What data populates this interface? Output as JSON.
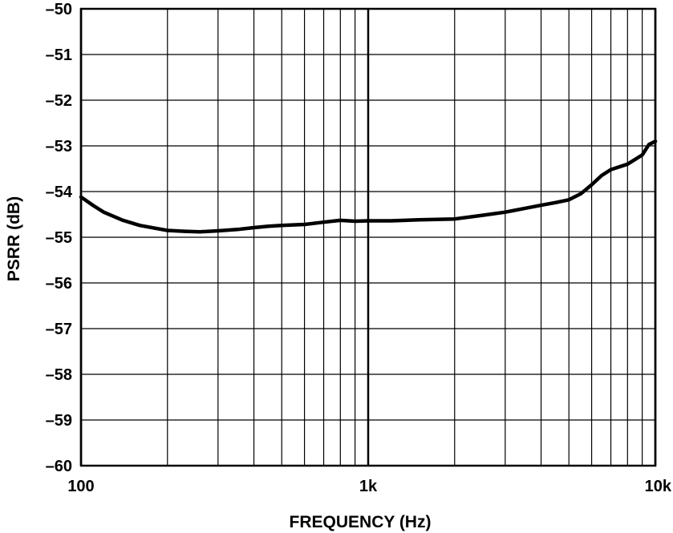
{
  "chart_data": {
    "type": "line",
    "xscale": "log",
    "xlim": [
      100,
      10000
    ],
    "ylim": [
      -60,
      -50
    ],
    "xlabel": "FREQUENCY (Hz)",
    "ylabel": "PSRR (dB)",
    "x_ticks": [
      {
        "value": 100,
        "label": "100"
      },
      {
        "value": 1000,
        "label": "1k"
      },
      {
        "value": 10000,
        "label": "10k"
      }
    ],
    "y_ticks": [
      {
        "value": -50,
        "label": "–50"
      },
      {
        "value": -51,
        "label": "–51"
      },
      {
        "value": -52,
        "label": "–52"
      },
      {
        "value": -53,
        "label": "–53"
      },
      {
        "value": -54,
        "label": "–54"
      },
      {
        "value": -55,
        "label": "–55"
      },
      {
        "value": -56,
        "label": "–56"
      },
      {
        "value": -57,
        "label": "–57"
      },
      {
        "value": -58,
        "label": "–58"
      },
      {
        "value": -59,
        "label": "–59"
      },
      {
        "value": -60,
        "label": "–60"
      }
    ],
    "grid": true,
    "x_minor_grid": [
      200,
      300,
      400,
      500,
      600,
      700,
      800,
      900,
      2000,
      3000,
      4000,
      5000,
      6000,
      7000,
      8000,
      9000
    ],
    "series": [
      {
        "color": "#000000",
        "x": [
          100,
          110,
          120,
          140,
          160,
          180,
          200,
          230,
          260,
          300,
          350,
          400,
          450,
          500,
          600,
          700,
          800,
          900,
          1000,
          1200,
          1500,
          2000,
          2500,
          3000,
          3500,
          4000,
          4500,
          5000,
          5500,
          6000,
          6500,
          7000,
          8000,
          9000,
          9500,
          10000
        ],
        "y": [
          -54.12,
          -54.3,
          -54.45,
          -54.63,
          -54.74,
          -54.8,
          -54.85,
          -54.87,
          -54.88,
          -54.86,
          -54.83,
          -54.79,
          -54.76,
          -54.74,
          -54.72,
          -54.67,
          -54.63,
          -54.65,
          -54.64,
          -54.64,
          -54.62,
          -54.6,
          -54.52,
          -54.45,
          -54.37,
          -54.3,
          -54.24,
          -54.18,
          -54.05,
          -53.85,
          -53.65,
          -53.52,
          -53.4,
          -53.2,
          -52.97,
          -52.9
        ]
      }
    ]
  }
}
